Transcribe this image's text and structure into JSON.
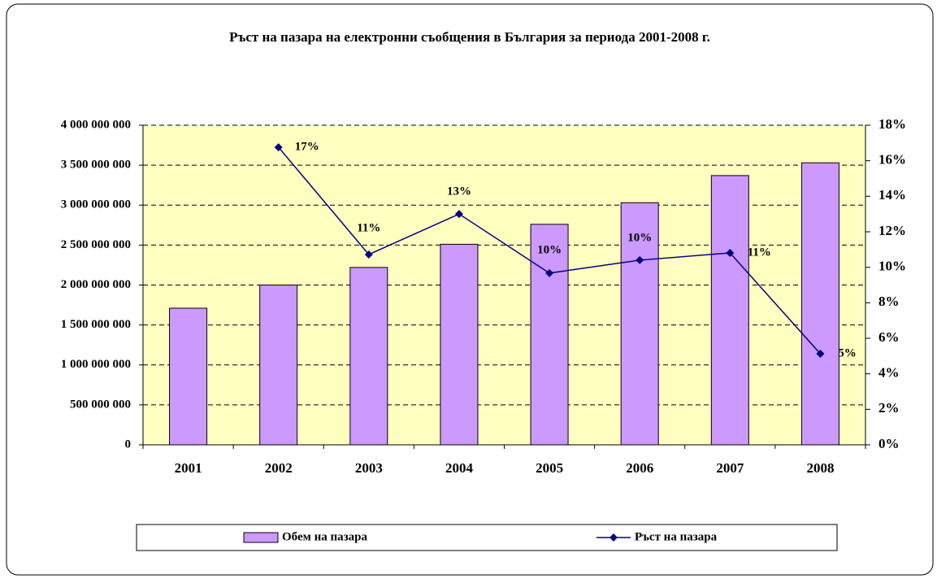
{
  "chart_data": {
    "type": "bar-line",
    "title": "Ръст на пазара на електронни съобщения в България за периода 2001-2008 г.",
    "categories": [
      "2001",
      "2002",
      "2003",
      "2004",
      "2005",
      "2006",
      "2007",
      "2008"
    ],
    "series": [
      {
        "name": "Обем на пазара",
        "type": "bar",
        "color": "#cc99ff",
        "values": [
          1710000000,
          2000000000,
          2220000000,
          2510000000,
          2760000000,
          3030000000,
          3370000000,
          3530000000
        ]
      },
      {
        "name": "Ръст на пазара",
        "type": "line",
        "color": "#000080",
        "axis": "y2",
        "values": [
          null,
          16.76,
          10.72,
          13.0,
          9.67,
          10.4,
          10.81,
          5.13
        ],
        "value_labels": [
          null,
          "17%",
          "11%",
          "13%",
          "10%",
          "10%",
          "11%",
          "5%"
        ]
      }
    ],
    "ylim": [
      0,
      4000000000
    ],
    "yticks": [
      0,
      {
        "value": 500000000,
        "label": "500 000 000"
      },
      {
        "value": 1000000000,
        "label": "1 000 000 000"
      },
      {
        "value": 1500000000,
        "label": "1 500 000 000"
      },
      {
        "value": 2000000000,
        "label": "2 000 000 000"
      },
      {
        "value": 2500000000,
        "label": "2 500 000 000"
      },
      {
        "value": 3000000000,
        "label": "3 000 000 000"
      },
      {
        "value": 3500000000,
        "label": "3 500 000 000"
      },
      {
        "value": 4000000000,
        "label": "4 000 000 000"
      }
    ],
    "y2lim": [
      0,
      18
    ],
    "y2ticks": [
      {
        "value": 0,
        "label": "0%"
      },
      {
        "value": 2,
        "label": "2%"
      },
      {
        "value": 4,
        "label": "4%"
      },
      {
        "value": 6,
        "label": "6%"
      },
      {
        "value": 8,
        "label": "8%"
      },
      {
        "value": 10,
        "label": "10%"
      },
      {
        "value": 12,
        "label": "12%"
      },
      {
        "value": 14,
        "label": "14%"
      },
      {
        "value": 16,
        "label": "16%"
      },
      {
        "value": 18,
        "label": "18%"
      }
    ],
    "grid": true,
    "legend": "bottom"
  }
}
